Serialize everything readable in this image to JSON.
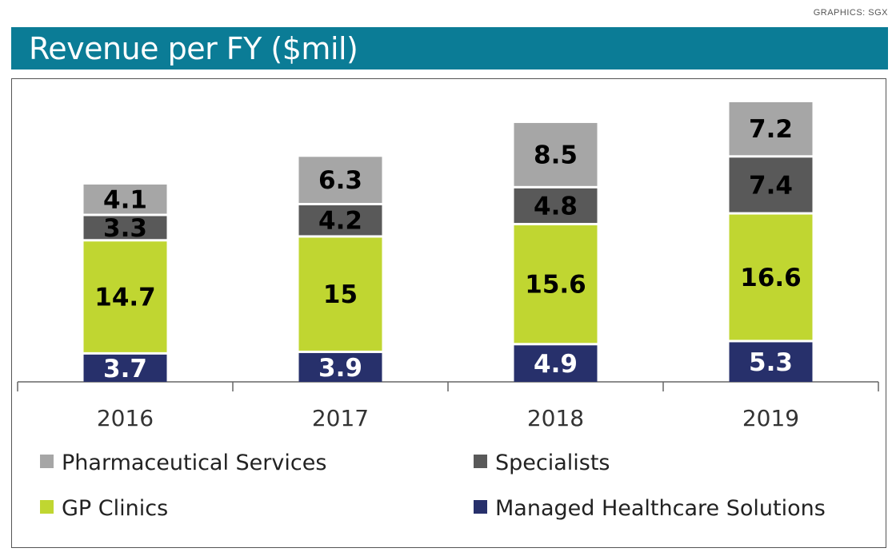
{
  "credit": "GRAPHICS: SGX",
  "title": "Revenue per FY ($mil)",
  "colors": {
    "title_bar": "#0b7c96",
    "pharmaceutical": "#a6a6a6",
    "specialists": "#595959",
    "gp": "#c0d631",
    "managed": "#27306b"
  },
  "chart_data": {
    "type": "bar",
    "stacked": true,
    "categories": [
      "2016",
      "2017",
      "2018",
      "2019"
    ],
    "series": [
      {
        "name": "Managed Healthcare Solutions",
        "values": [
          3.7,
          3.9,
          4.9,
          5.3
        ],
        "labels": [
          "3.7",
          "3.9",
          "4.9",
          "5.3"
        ],
        "color": "#27306b",
        "label_color": "#ffffff"
      },
      {
        "name": "GP Clinics",
        "values": [
          14.7,
          15,
          15.6,
          16.6
        ],
        "labels": [
          "14.7",
          "15",
          "15.6",
          "16.6"
        ],
        "color": "#c0d631",
        "label_color": "#000000"
      },
      {
        "name": "Specialists",
        "values": [
          3.3,
          4.2,
          4.8,
          7.4
        ],
        "labels": [
          "3.3",
          "4.2",
          "4.8",
          "7.4"
        ],
        "color": "#595959",
        "label_color": "#000000"
      },
      {
        "name": "Pharmaceutical Services",
        "values": [
          4.1,
          6.3,
          8.5,
          7.2
        ],
        "labels": [
          "4.1",
          "6.3",
          "8.5",
          "7.2"
        ],
        "color": "#a6a6a6",
        "label_color": "#000000"
      }
    ],
    "legend": {
      "placement": "bottom",
      "order": [
        "Pharmaceutical Services",
        "Specialists",
        "GP Clinics",
        "Managed Healthcare Solutions"
      ]
    },
    "ylim": [
      0,
      38
    ],
    "grid": false
  }
}
